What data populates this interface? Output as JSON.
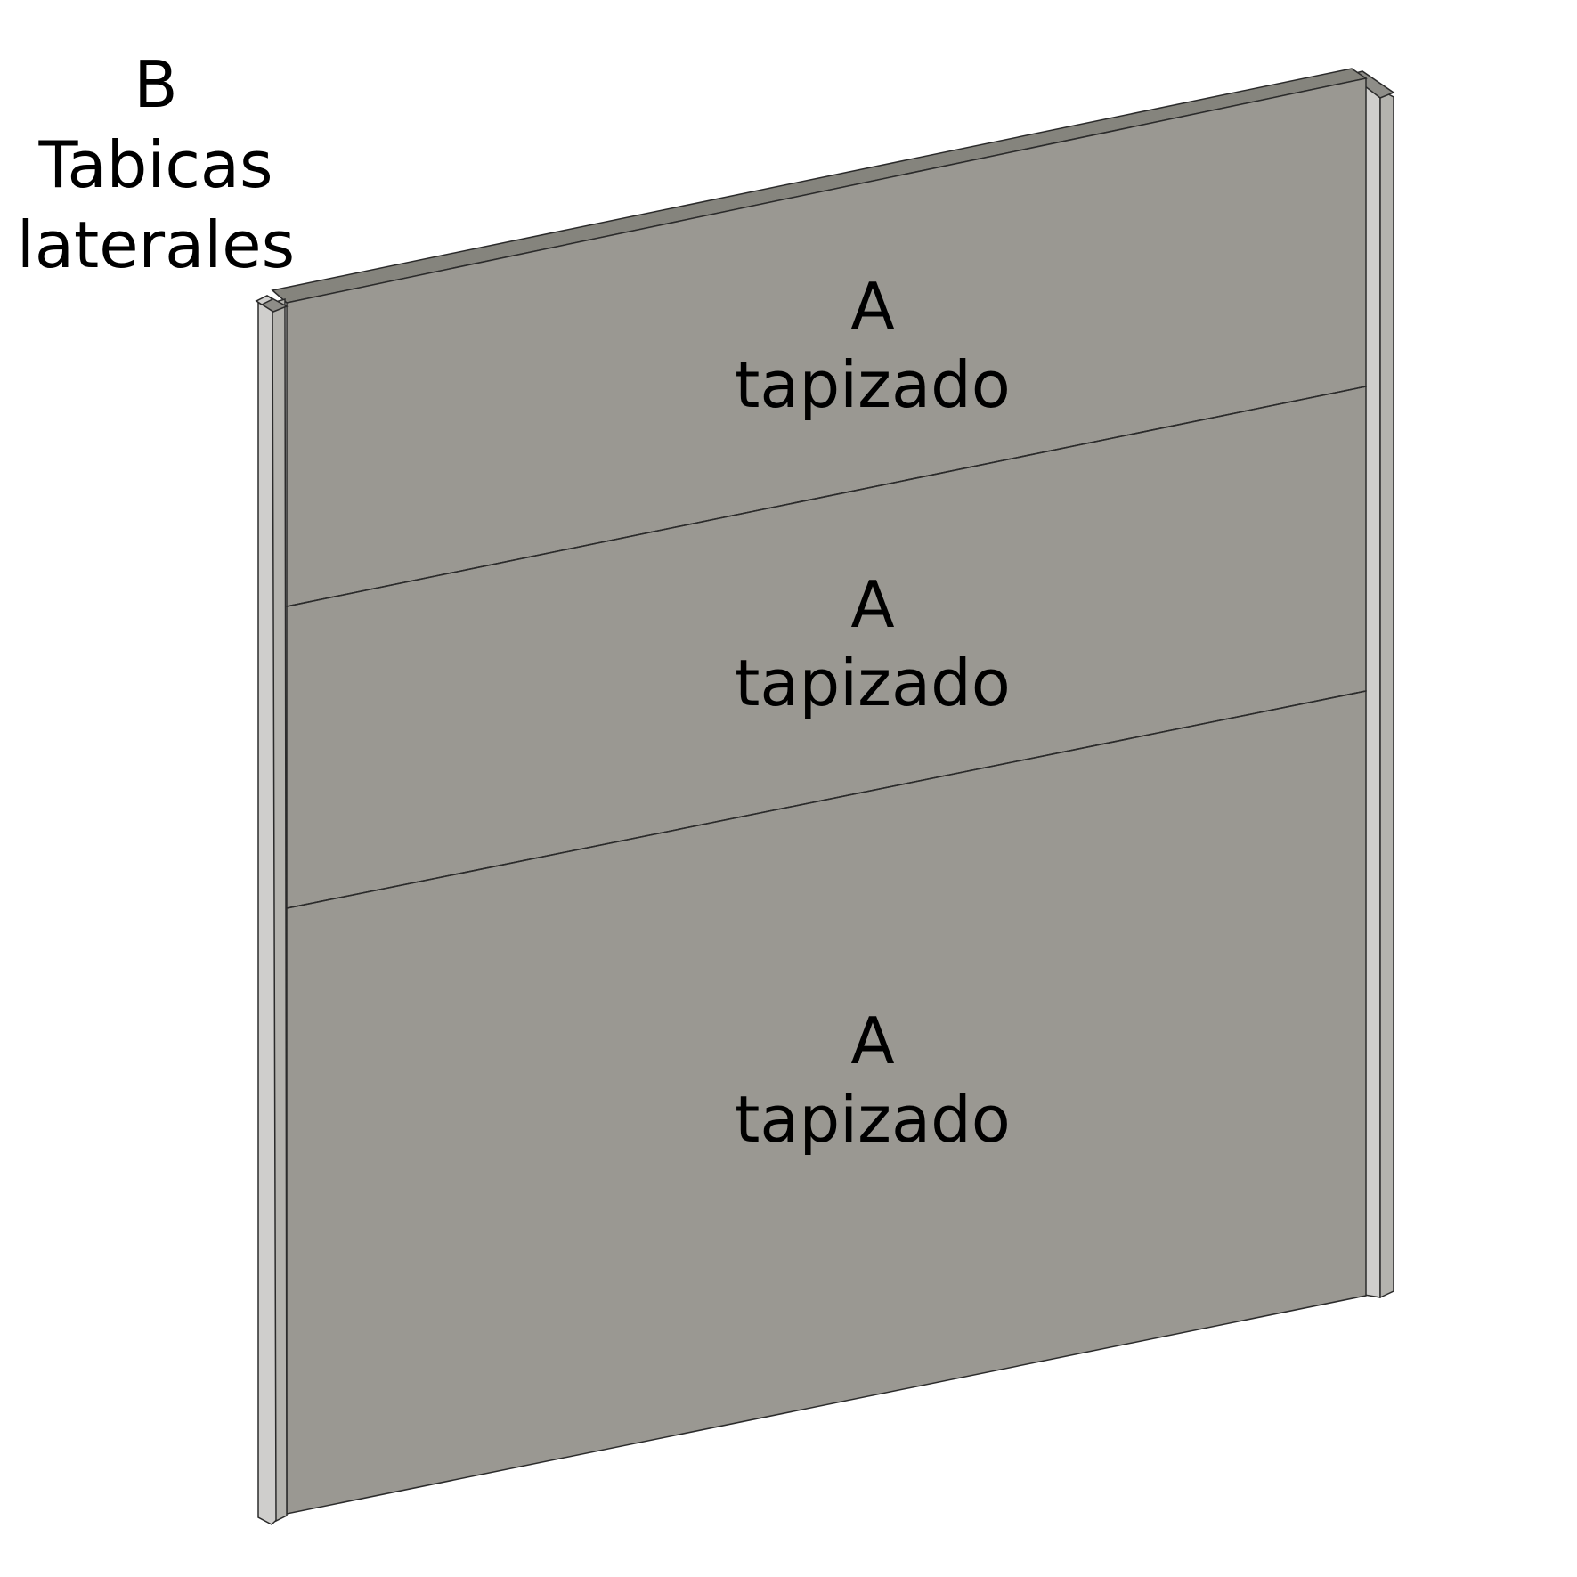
{
  "colors": {
    "background": "#ffffff",
    "panel_face": "#9a9892",
    "panel_top": "#85847d",
    "post_light": "#cfcecc",
    "post_mid": "#b4b3ae",
    "post_dark": "#8e8d88",
    "edge_line": "#2b2b2b",
    "text": "#000000"
  },
  "side_part": {
    "code": "B",
    "name_line1": "Tabicas",
    "name_line2": "laterales"
  },
  "panels": [
    {
      "code": "A",
      "name": "tapizado"
    },
    {
      "code": "A",
      "name": "tapizado"
    },
    {
      "code": "A",
      "name": "tapizado"
    }
  ]
}
